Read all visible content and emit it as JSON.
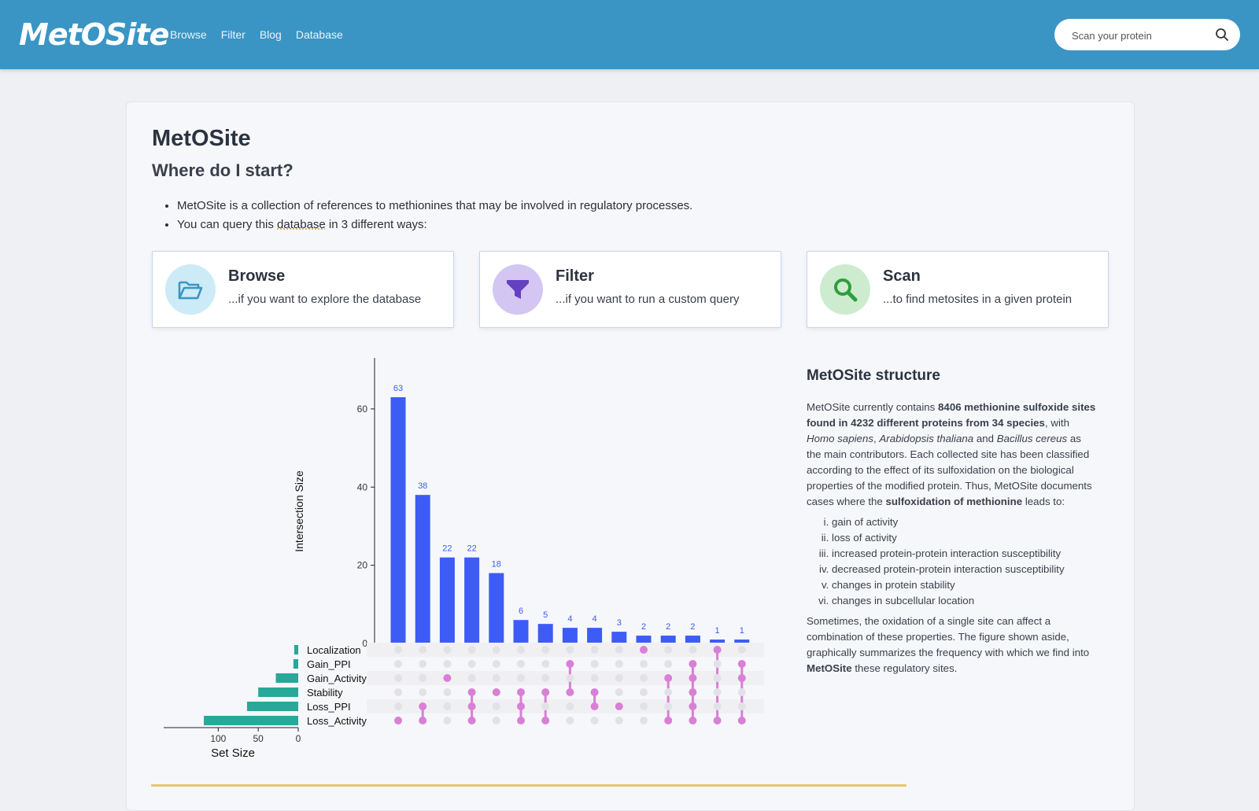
{
  "header": {
    "logo": "MetOSite",
    "nav": [
      "Browse",
      "Filter",
      "Blog",
      "Database"
    ],
    "search_placeholder": "Scan your protein",
    "colors": {
      "bar": "#3a95c4"
    }
  },
  "main": {
    "title": "MetOSite",
    "subtitle": "Where do I start?",
    "bullet1": "MetOSite is a collection of references to methionines that may be involved in regulatory processes.",
    "bullet2_pre": "You can query this ",
    "bullet2_link": "database",
    "bullet2_post": " in 3 different ways:",
    "features": [
      {
        "title": "Browse",
        "desc": "...if you want to explore the database",
        "icon": "folder-open-icon",
        "color": "#cdeaf7"
      },
      {
        "title": "Filter",
        "desc": "...if you want to run a custom query",
        "icon": "funnel-icon",
        "color": "#d4c6f2"
      },
      {
        "title": "Scan",
        "desc": "...to find metosites in a given protein",
        "icon": "search-icon",
        "color": "#cdeccf"
      }
    ]
  },
  "structure": {
    "title": "MetOSite structure",
    "p1_a": "MetOSite currently contains ",
    "p1_b": "8406 methionine sulfoxide sites found in 4232 different proteins from 34 species",
    "p1_c": ", with ",
    "species1": "Homo sapiens",
    "sep1": ", ",
    "species2": "Arabidopsis thaliana",
    "and": " and ",
    "species3": "Bacillus cereus",
    "p1_d": " as the main contributors. Each collected site has been classified according to the effect of its sulfoxidation on the biological properties of the modified protein. Thus, MetOSite documents cases where the ",
    "p1_e": "sulfoxidation of methionine",
    "p1_f": " leads to:",
    "list": [
      "gain of activity",
      "loss of activity",
      "increased protein-protein interaction susceptibility",
      "decreased protein-protein interaction susceptibility",
      "changes in protein stability",
      "changes in subcellular location"
    ],
    "p2_a": "Sometimes, the oxidation of a single site can affect a combination of these properties. The figure shown aside, graphically summarizes the frequency with which we find into ",
    "p2_b": "MetOSite",
    "p2_c": " these regulatory sites."
  },
  "chart_data": {
    "type": "bar",
    "ylabel": "Intersection Size",
    "xlabel": "Set Size",
    "ylim": [
      0,
      72
    ],
    "yticks": [
      0,
      20,
      40,
      60
    ],
    "values": [
      63,
      38,
      22,
      22,
      18,
      6,
      5,
      4,
      4,
      3,
      2,
      2,
      2,
      1,
      1
    ],
    "sets": [
      "Localization",
      "Gain_PPI",
      "Gain_Activity",
      "Stability",
      "Loss_PPI",
      "Loss_Activity"
    ],
    "set_sizes": [
      5,
      6,
      28,
      50,
      64,
      118
    ],
    "set_xlim": [
      120,
      0
    ],
    "set_ticks": [
      100,
      50,
      0
    ],
    "combinations": [
      [
        "Loss_Activity"
      ],
      [
        "Loss_Activity",
        "Loss_PPI"
      ],
      [
        "Gain_Activity"
      ],
      [
        "Loss_Activity",
        "Loss_PPI",
        "Stability"
      ],
      [
        "Stability"
      ],
      [
        "Loss_Activity",
        "Loss_PPI",
        "Stability"
      ],
      [
        "Loss_Activity",
        "Stability"
      ],
      [
        "Stability",
        "Gain_PPI"
      ],
      [
        "Loss_PPI",
        "Stability"
      ],
      [
        "Loss_PPI"
      ],
      [
        "Localization"
      ],
      [
        "Loss_Activity",
        "Gain_Activity"
      ],
      [
        "Loss_Activity",
        "Loss_PPI",
        "Stability",
        "Gain_Activity",
        "Gain_PPI"
      ],
      [
        "Loss_Activity",
        "Localization"
      ],
      [
        "Loss_Activity",
        "Gain_Activity",
        "Gain_PPI"
      ]
    ],
    "colors": {
      "bar": "#3d5cf5",
      "set": "#27a898",
      "dot": "#d97fd6",
      "inactive": "#e2e2e6",
      "label": "#3d5cf5"
    }
  }
}
